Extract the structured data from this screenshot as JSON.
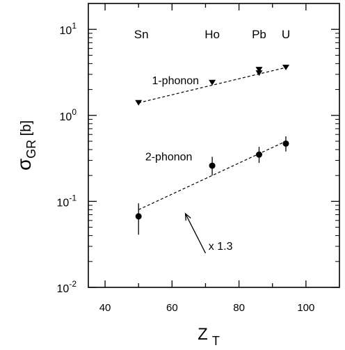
{
  "chart_data": {
    "type": "scatter",
    "ylabel": {
      "main": "σ",
      "sub": "GR",
      "unit": "[b]"
    },
    "xlabel": {
      "main": "Z",
      "sub": "T"
    },
    "xlim": [
      35,
      110
    ],
    "ylim": [
      0.01,
      20
    ],
    "yscale": "log",
    "xticks": [
      {
        "value": 40,
        "label": "40"
      },
      {
        "value": 60,
        "label": "60"
      },
      {
        "value": 80,
        "label": "80"
      },
      {
        "value": 100,
        "label": "100"
      }
    ],
    "yticks": [
      {
        "value": 0.01,
        "base": "10",
        "exp": "-2"
      },
      {
        "value": 0.1,
        "base": "10",
        "exp": "-1"
      },
      {
        "value": 1,
        "base": "10",
        "exp": "0"
      },
      {
        "value": 10,
        "base": "10",
        "exp": "1"
      }
    ],
    "elements": [
      {
        "name": "Sn",
        "x": 50
      },
      {
        "name": "Ho",
        "x": 72
      },
      {
        "name": "Pb",
        "x": 86
      },
      {
        "name": "U",
        "x": 94
      }
    ],
    "series": [
      {
        "name": "1-phonon",
        "marker": "triangle-down",
        "points": [
          {
            "x": 50,
            "y": 1.4
          },
          {
            "x": 72,
            "y": 2.4
          },
          {
            "x": 86,
            "y": 3.1
          },
          {
            "x": 86,
            "y": 3.4
          },
          {
            "x": 94,
            "y": 3.6
          }
        ],
        "fit": [
          {
            "x": 50,
            "y": 1.4
          },
          {
            "x": 94,
            "y": 3.6
          }
        ]
      },
      {
        "name": "2-phonon",
        "marker": "circle",
        "points": [
          {
            "x": 50,
            "y": 0.067,
            "ylo": 0.041,
            "yhi": 0.095
          },
          {
            "x": 72,
            "y": 0.26,
            "ylo": 0.2,
            "yhi": 0.33
          },
          {
            "x": 86,
            "y": 0.35,
            "ylo": 0.28,
            "yhi": 0.43
          },
          {
            "x": 94,
            "y": 0.47,
            "ylo": 0.38,
            "yhi": 0.57
          }
        ],
        "fit": [
          {
            "x": 50,
            "y": 0.08
          },
          {
            "x": 94,
            "y": 0.5
          }
        ]
      }
    ],
    "annotation": {
      "text": "x 1.3",
      "arrow_from": {
        "x": 70,
        "y": 0.025
      },
      "arrow_to": {
        "x": 64,
        "y": 0.072
      }
    }
  }
}
